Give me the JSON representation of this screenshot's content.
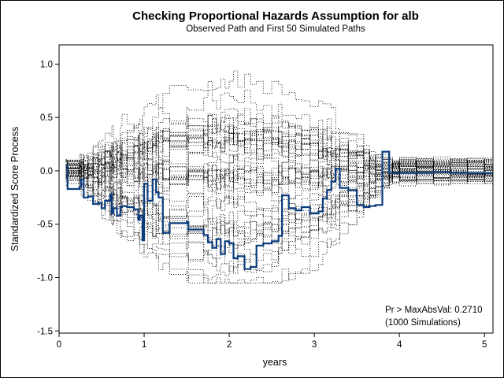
{
  "chart_data": {
    "type": "line",
    "title": "Checking Proportional Hazards Assumption for alb",
    "subtitle": "Observed Path and First 50 Simulated Paths",
    "xlabel": "years",
    "ylabel": "Standardized Score Process",
    "xlim": [
      0,
      5.1
    ],
    "ylim": [
      -1.52,
      1.18
    ],
    "x_ticks": [
      0,
      1,
      2,
      3,
      4,
      5
    ],
    "x_tick_labels": [
      "0",
      "1",
      "2",
      "3",
      "4",
      "5"
    ],
    "y_ticks": [
      -1.5,
      -1.0,
      -0.5,
      0.0,
      0.5,
      1.0
    ],
    "y_tick_labels": [
      "-1.5",
      "-1.0",
      "-0.5",
      "0.0",
      "0.5",
      "1.0"
    ],
    "grid": false,
    "annotations": [
      "Pr > MaxAbsVal: 0.2710",
      "(1000 Simulations)"
    ],
    "observed_color": "#0b3c7d",
    "simulated_color": "#000000",
    "observed_path": {
      "x": [
        0.08,
        0.1,
        0.24,
        0.26,
        0.29,
        0.34,
        0.4,
        0.46,
        0.5,
        0.54,
        0.6,
        0.62,
        0.64,
        0.68,
        0.72,
        0.74,
        0.8,
        0.88,
        0.93,
        0.95,
        0.98,
        1.0,
        1.04,
        1.1,
        1.14,
        1.17,
        1.22,
        1.3,
        1.5,
        1.52,
        1.7,
        1.75,
        1.8,
        1.85,
        1.9,
        1.95,
        2.0,
        2.05,
        2.1,
        2.18,
        2.25,
        2.32,
        2.4,
        2.5,
        2.58,
        2.62,
        2.7,
        2.78,
        2.85,
        2.95,
        3.05,
        3.1,
        3.15,
        3.2,
        3.25,
        3.3,
        3.4,
        3.5,
        3.58,
        3.65,
        3.72,
        3.8,
        3.88,
        3.92,
        4.0,
        4.2,
        4.4,
        4.6,
        4.8,
        5.0,
        5.1
      ],
      "y": [
        0.05,
        -0.17,
        -0.15,
        -0.08,
        -0.25,
        -0.24,
        -0.31,
        -0.3,
        -0.35,
        -0.28,
        -0.22,
        -0.4,
        -0.35,
        -0.42,
        -0.34,
        -0.33,
        -0.34,
        -0.36,
        -0.46,
        -0.42,
        -0.65,
        -0.12,
        -0.28,
        -0.08,
        -0.2,
        -0.25,
        -0.58,
        -0.49,
        -0.48,
        -0.55,
        -0.6,
        -0.67,
        -0.72,
        -0.64,
        -0.78,
        -0.66,
        -0.68,
        -0.82,
        -0.8,
        -0.92,
        -0.9,
        -0.7,
        -0.68,
        -0.66,
        -0.61,
        -0.23,
        -0.35,
        -0.37,
        -0.34,
        -0.4,
        -0.38,
        -0.26,
        -0.18,
        -0.1,
        0.02,
        -0.16,
        -0.18,
        -0.32,
        -0.34,
        -0.33,
        -0.32,
        0.18,
        -0.02,
        -0.02,
        -0.02,
        -0.02,
        -0.01,
        -0.02,
        -0.02,
        -0.02,
        -0.02
      ]
    }
  }
}
